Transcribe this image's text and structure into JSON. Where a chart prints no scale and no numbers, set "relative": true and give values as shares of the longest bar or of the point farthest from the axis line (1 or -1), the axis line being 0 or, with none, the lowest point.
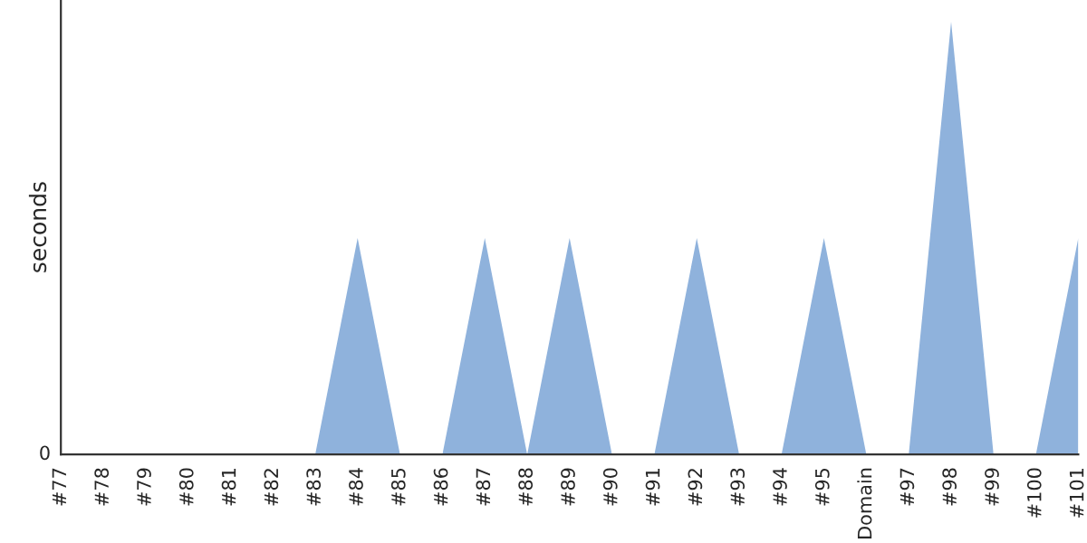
{
  "chart_data": {
    "type": "area",
    "ylabel": "seconds",
    "relative": true,
    "annotations": [
      "0"
    ],
    "grid": false,
    "categories": [
      "#77",
      "#78",
      "#79",
      "#80",
      "#81",
      "#82",
      "#83",
      "#84",
      "#85",
      "#86",
      "#87",
      "#88",
      "#89",
      "#90",
      "#91",
      "#92",
      "#93",
      "#94",
      "#95",
      "Domain",
      "#97",
      "#98",
      "#99",
      "#100",
      "#101"
    ],
    "series": [
      {
        "color": "#8fb2dc",
        "values": [
          0,
          0,
          0,
          0,
          0,
          0,
          0,
          0.5,
          0,
          0,
          0.5,
          0,
          0.5,
          0,
          0,
          0.5,
          0,
          0,
          0.5,
          0,
          0,
          1,
          0,
          0,
          0.5
        ]
      }
    ]
  }
}
